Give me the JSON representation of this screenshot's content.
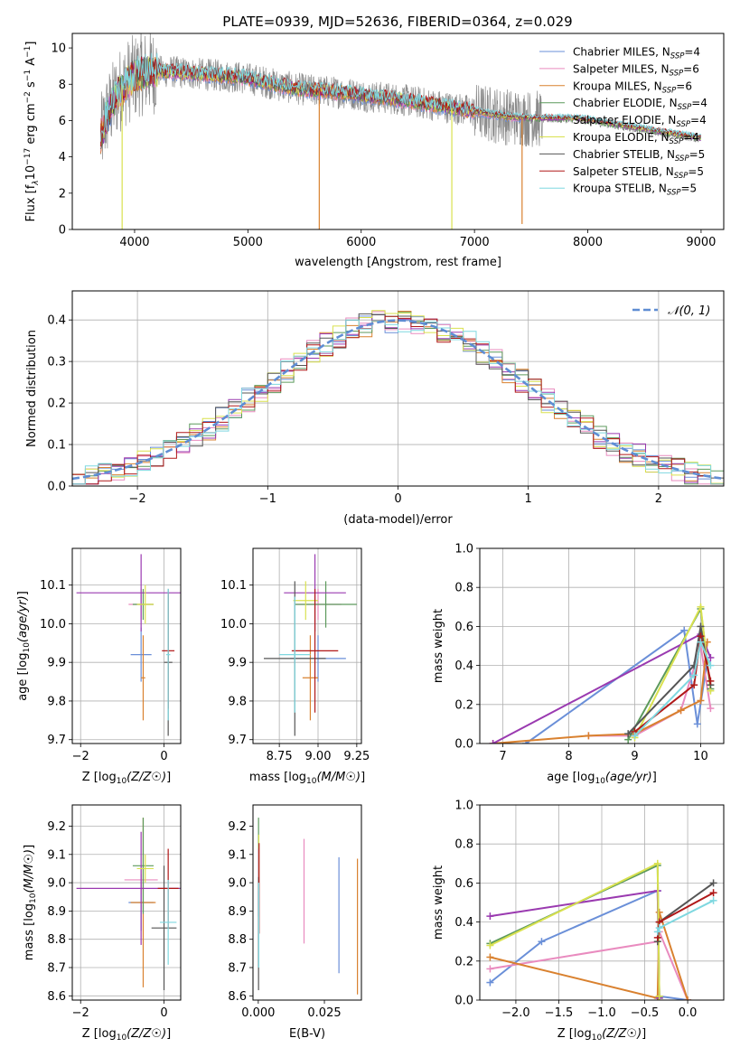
{
  "title": "PLATE=0939, MJD=52636, FIBERID=0364, z=0.029",
  "colors": {
    "Chabrier MILES": "#6a8fd8",
    "Salpeter MILES": "#e98bbf",
    "Kroupa MILES": "#d9812f",
    "Chabrier ELODIE": "#5c9a5c",
    "Salpeter ELODIE": "#9a3ab0",
    "Kroupa ELODIE": "#d9e14f",
    "Chabrier STELIB": "#555555",
    "Salpeter STELIB": "#b01818",
    "Kroupa STELIB": "#7fd8e0"
  },
  "chart_data": [
    {
      "id": "spectrum",
      "type": "line",
      "title": "PLATE=0939, MJD=52636, FIBERID=0364, z=0.029",
      "xlabel": "wavelength [Angstrom, rest frame]",
      "ylabel_tex": "Flux [f_λ10^-17 erg cm^-2 s^-1 A^-1]",
      "xlim": [
        3450,
        9200
      ],
      "ylim": [
        0,
        10.8
      ],
      "xticks": [
        4000,
        5000,
        6000,
        7000,
        8000,
        9000
      ],
      "yticks": [
        0,
        2,
        4,
        6,
        8,
        10
      ],
      "grid": false,
      "legend_position": "top-right",
      "legend": [
        {
          "label": "Chabrier MILES, N",
          "sub": "SSP",
          "suffix": "=4"
        },
        {
          "label": "Salpeter MILES, N",
          "sub": "SSP",
          "suffix": "=6"
        },
        {
          "label": "Kroupa MILES, N",
          "sub": "SSP",
          "suffix": "=6"
        },
        {
          "label": "Chabrier ELODIE, N",
          "sub": "SSP",
          "suffix": "=4"
        },
        {
          "label": "Salpeter ELODIE, N",
          "sub": "SSP",
          "suffix": "=4"
        },
        {
          "label": "Kroupa ELODIE, N",
          "sub": "SSP",
          "suffix": "=4"
        },
        {
          "label": "Chabrier STELIB, N",
          "sub": "SSP",
          "suffix": "=5"
        },
        {
          "label": "Salpeter STELIB, N",
          "sub": "SSP",
          "suffix": "=5"
        },
        {
          "label": "Kroupa STELIB, N",
          "sub": "SSP",
          "suffix": "=5"
        }
      ],
      "data_envelope": {
        "x": [
          3700,
          3750,
          3850,
          3950,
          4050,
          4150,
          4300,
          4500,
          4700,
          4900,
          5100,
          5300,
          5500,
          5700,
          5900,
          6100,
          6300,
          6500,
          6700,
          6900,
          7100,
          7300,
          7500,
          7700,
          7900,
          8100,
          8300,
          8500,
          8700,
          8900,
          9000
        ],
        "y": [
          5.0,
          6.2,
          7.5,
          8.2,
          8.6,
          8.7,
          8.7,
          8.6,
          8.5,
          8.4,
          8.2,
          7.9,
          7.7,
          7.6,
          7.5,
          7.3,
          7.2,
          7.0,
          6.8,
          6.6,
          6.4,
          6.2,
          6.1,
          6.1,
          6.1,
          5.9,
          5.7,
          5.5,
          5.3,
          5.1,
          5.0
        ]
      },
      "model_dropouts": [
        {
          "x": 3890,
          "y_to": 0,
          "series": "Kroupa ELODIE"
        },
        {
          "x": 5630,
          "y_to": 0,
          "series": "Kroupa MILES"
        },
        {
          "x": 6800,
          "y_to": 0,
          "series": "Kroupa ELODIE"
        },
        {
          "x": 7420,
          "y_to": 0.3,
          "series": "Kroupa MILES"
        }
      ]
    },
    {
      "id": "residuals",
      "type": "histogram",
      "xlabel": "(data-model)/error",
      "ylabel": "Normed distribution",
      "xlim": [
        -2.5,
        2.5
      ],
      "ylim": [
        0,
        0.47
      ],
      "xticks": [
        -2,
        -1,
        0,
        1,
        2
      ],
      "yticks": [
        0.0,
        0.1,
        0.2,
        0.3,
        0.4
      ],
      "grid": true,
      "bin_width": 0.1,
      "legend": [
        {
          "label": "𝒩(0, 1)",
          "series": "gaussian"
        }
      ],
      "legend_position": "top-right",
      "gaussian": {
        "mu": 0,
        "sigma": 1,
        "color": "#5f8dd3",
        "style": "dashed"
      }
    },
    {
      "id": "z-age",
      "type": "errorbar",
      "xlabel": "Z [log10(Z/Z☉)]",
      "ylabel": "age  [log10(age/yr)]",
      "xlim": [
        -2.2,
        0.4
      ],
      "ylim": [
        9.69,
        10.195
      ],
      "xticks": [
        -2,
        0
      ],
      "yticks": [
        9.7,
        9.8,
        9.9,
        10.0,
        10.1
      ],
      "grid": true,
      "points": [
        {
          "series": "Chabrier MILES",
          "x": -0.55,
          "y": 9.92,
          "xerr": 0.25,
          "yerr": 0.07
        },
        {
          "series": "Salpeter MILES",
          "x": -0.55,
          "y": 10.05,
          "xerr": 0.3,
          "yerr": 0.04
        },
        {
          "series": "Kroupa MILES",
          "x": -0.5,
          "y": 9.86,
          "xerr": 0.05,
          "yerr": 0.11
        },
        {
          "series": "Chabrier ELODIE",
          "x": -0.5,
          "y": 10.05,
          "xerr": 0.25,
          "yerr": 0.04
        },
        {
          "series": "Salpeter ELODIE",
          "x": -0.55,
          "y": 10.08,
          "xerr": 1.55,
          "yerr": 0.1
        },
        {
          "series": "Kroupa ELODIE",
          "x": -0.45,
          "y": 10.05,
          "xerr": 0.2,
          "yerr": 0.05
        },
        {
          "series": "Chabrier STELIB",
          "x": 0.1,
          "y": 9.9,
          "xerr": 0.1,
          "yerr": 0.19
        },
        {
          "series": "Salpeter STELIB",
          "x": 0.1,
          "y": 9.93,
          "xerr": 0.15,
          "yerr": 0.15
        },
        {
          "series": "Kroupa STELIB",
          "x": 0.1,
          "y": 9.92,
          "xerr": 0.05,
          "yerr": 0.17
        }
      ]
    },
    {
      "id": "mass-age",
      "type": "errorbar",
      "xlabel": "mass [log10(M/M☉)]",
      "ylabel": "",
      "xlim": [
        8.58,
        9.28
      ],
      "ylim": [
        9.69,
        10.195
      ],
      "xticks": [
        8.75,
        9.0,
        9.25
      ],
      "yticks": [
        9.7,
        9.8,
        9.9,
        10.0,
        10.1
      ],
      "grid": true,
      "points": [
        {
          "series": "Chabrier MILES",
          "x": 9.0,
          "y": 9.91,
          "xerr": 0.18,
          "yerr": 0.06
        },
        {
          "series": "Salpeter MILES",
          "x": 9.0,
          "y": 10.05,
          "xerr": 0.15,
          "yerr": 0.04
        },
        {
          "series": "Kroupa MILES",
          "x": 8.95,
          "y": 9.86,
          "xerr": 0.05,
          "yerr": 0.11
        },
        {
          "series": "Chabrier ELODIE",
          "x": 9.05,
          "y": 10.05,
          "xerr": 0.2,
          "yerr": 0.06
        },
        {
          "series": "Salpeter ELODIE",
          "x": 8.98,
          "y": 10.08,
          "xerr": 0.2,
          "yerr": 0.1
        },
        {
          "series": "Kroupa ELODIE",
          "x": 8.92,
          "y": 10.06,
          "xerr": 0.08,
          "yerr": 0.05
        },
        {
          "series": "Chabrier STELIB",
          "x": 8.85,
          "y": 9.91,
          "xerr": 0.2,
          "yerr": 0.2
        },
        {
          "series": "Salpeter STELIB",
          "x": 8.98,
          "y": 9.93,
          "xerr": 0.15,
          "yerr": 0.16
        },
        {
          "series": "Kroupa STELIB",
          "x": 8.85,
          "y": 9.92,
          "xerr": 0.1,
          "yerr": 0.15
        }
      ]
    },
    {
      "id": "age-weight",
      "type": "line",
      "xlabel": "age  [log10(age/yr)]",
      "ylabel": "mass weight",
      "xlim": [
        6.65,
        10.35
      ],
      "ylim": [
        0,
        1
      ],
      "xticks": [
        7,
        8,
        9,
        10
      ],
      "yticks": [
        0.0,
        0.2,
        0.4,
        0.6,
        0.8,
        1.0
      ],
      "grid": true,
      "series": [
        {
          "name": "Chabrier MILES",
          "x": [
            7.35,
            9.75,
            9.95,
            10.1
          ],
          "y": [
            0.0,
            0.58,
            0.1,
            0.42
          ]
        },
        {
          "name": "Salpeter MILES",
          "x": [
            8.3,
            9.0,
            9.7,
            10.0,
            10.15
          ],
          "y": [
            0.04,
            0.04,
            0.17,
            0.5,
            0.18
          ]
        },
        {
          "name": "Kroupa MILES",
          "x": [
            6.85,
            8.3,
            9.0,
            9.7,
            10.0,
            10.1
          ],
          "y": [
            0.0,
            0.04,
            0.05,
            0.17,
            0.22,
            0.52
          ]
        },
        {
          "name": "Chabrier ELODIE",
          "x": [
            8.9,
            10.0,
            10.15
          ],
          "y": [
            0.02,
            0.69,
            0.28
          ]
        },
        {
          "name": "Salpeter ELODIE",
          "x": [
            6.85,
            10.0,
            10.15
          ],
          "y": [
            0.0,
            0.56,
            0.44
          ]
        },
        {
          "name": "Kroupa ELODIE",
          "x": [
            9.0,
            10.0,
            10.15
          ],
          "y": [
            0.03,
            0.7,
            0.27
          ]
        },
        {
          "name": "Chabrier STELIB",
          "x": [
            8.9,
            9.9,
            10.0,
            10.15
          ],
          "y": [
            0.05,
            0.4,
            0.6,
            0.3
          ]
        },
        {
          "name": "Salpeter STELIB",
          "x": [
            9.0,
            9.9,
            10.0,
            10.15
          ],
          "y": [
            0.06,
            0.3,
            0.55,
            0.32
          ]
        },
        {
          "name": "Kroupa STELIB",
          "x": [
            9.0,
            9.9,
            10.0,
            10.15
          ],
          "y": [
            0.04,
            0.35,
            0.52,
            0.4
          ]
        }
      ]
    },
    {
      "id": "z-mass",
      "type": "errorbar",
      "xlabel": "Z [log10(Z/Z☉)]",
      "ylabel": "mass [log10(M/M☉)]",
      "xlim": [
        -2.2,
        0.4
      ],
      "ylim": [
        8.585,
        9.275
      ],
      "xticks": [
        -2,
        0
      ],
      "yticks": [
        8.6,
        8.7,
        8.8,
        8.9,
        9.0,
        9.1,
        9.2
      ],
      "grid": true,
      "points": [
        {
          "series": "Chabrier MILES",
          "x": -0.55,
          "y": 8.93,
          "xerr": 0.3,
          "yerr": 0.1
        },
        {
          "series": "Salpeter MILES",
          "x": -0.55,
          "y": 9.01,
          "xerr": 0.4,
          "yerr": 0.05
        },
        {
          "series": "Kroupa MILES",
          "x": -0.5,
          "y": 8.93,
          "xerr": 0.3,
          "yerr": 0.3
        },
        {
          "series": "Chabrier ELODIE",
          "x": -0.5,
          "y": 9.06,
          "xerr": 0.25,
          "yerr": 0.17
        },
        {
          "series": "Salpeter ELODIE",
          "x": -0.55,
          "y": 8.98,
          "xerr": 1.55,
          "yerr": 0.2
        },
        {
          "series": "Kroupa ELODIE",
          "x": -0.45,
          "y": 9.05,
          "xerr": 0.2,
          "yerr": 0.05
        },
        {
          "series": "Chabrier STELIB",
          "x": 0.0,
          "y": 8.84,
          "xerr": 0.3,
          "yerr": 0.22
        },
        {
          "series": "Salpeter STELIB",
          "x": 0.1,
          "y": 8.98,
          "xerr": 0.25,
          "yerr": 0.14
        },
        {
          "series": "Kroupa STELIB",
          "x": 0.1,
          "y": 8.86,
          "xerr": 0.2,
          "yerr": 0.15
        }
      ]
    },
    {
      "id": "ebv-mass",
      "type": "errorbar",
      "xlabel": "E(B-V)",
      "ylabel": "",
      "xlim": [
        -0.002,
        0.039
      ],
      "ylim": [
        8.585,
        9.275
      ],
      "xticks": [
        0.0,
        0.025
      ],
      "xticklabels": [
        "0.000",
        "0.025"
      ],
      "yticks": [
        8.6,
        8.7,
        8.8,
        8.9,
        9.0,
        9.1,
        9.2
      ],
      "grid": false,
      "points": [
        {
          "series": "Chabrier MILES",
          "x": 0.0305,
          "y": 8.885,
          "yerr": 0.205
        },
        {
          "series": "Salpeter MILES",
          "x": 0.0173,
          "y": 8.97,
          "yerr": 0.185
        },
        {
          "series": "Kroupa MILES",
          "x": 0.0375,
          "y": 8.845,
          "yerr": 0.24
        },
        {
          "series": "Chabrier ELODIE",
          "x": 0.0001,
          "y": 9.07,
          "yerr": 0.16
        },
        {
          "series": "Salpeter ELODIE",
          "x": 0.0001,
          "y": 9.0,
          "yerr": 0.12
        },
        {
          "series": "Kroupa ELODIE",
          "x": 0.0002,
          "y": 9.07,
          "yerr": 0.1
        },
        {
          "series": "Chabrier STELIB",
          "x": 0.0001,
          "y": 8.82,
          "yerr": 0.2
        },
        {
          "series": "Salpeter STELIB",
          "x": 0.0003,
          "y": 8.98,
          "yerr": 0.16
        },
        {
          "series": "Kroupa STELIB",
          "x": 0.0002,
          "y": 8.85,
          "yerr": 0.15
        }
      ]
    },
    {
      "id": "z-weight",
      "type": "line",
      "xlabel": "Z [log10(Z/Z☉)]",
      "ylabel": "mass weight",
      "xlim": [
        -2.42,
        0.42
      ],
      "ylim": [
        0,
        1
      ],
      "xticks": [
        -2.0,
        -1.5,
        -1.0,
        -0.5,
        0.0
      ],
      "yticks": [
        0.0,
        0.2,
        0.4,
        0.6,
        0.8,
        1.0
      ],
      "grid": true,
      "series": [
        {
          "name": "Chabrier MILES",
          "x": [
            -2.3,
            -1.7,
            -0.35,
            -0.33,
            0.0
          ],
          "y": [
            0.09,
            0.3,
            0.56,
            0.02,
            0.0
          ]
        },
        {
          "name": "Salpeter MILES",
          "x": [
            -2.3,
            -0.35,
            -0.33,
            0.0
          ],
          "y": [
            0.16,
            0.3,
            0.35,
            0.0
          ]
        },
        {
          "name": "Kroupa MILES",
          "x": [
            -2.3,
            -0.35,
            -0.33,
            0.0
          ],
          "y": [
            0.22,
            0.01,
            0.45,
            0.0
          ]
        },
        {
          "name": "Chabrier ELODIE",
          "x": [
            -2.3,
            -0.35,
            -0.33
          ],
          "y": [
            0.29,
            0.69,
            0.01
          ]
        },
        {
          "name": "Salpeter ELODIE",
          "x": [
            -2.3,
            -0.35,
            -0.33
          ],
          "y": [
            0.43,
            0.56,
            0.01
          ]
        },
        {
          "name": "Kroupa ELODIE",
          "x": [
            -2.3,
            -0.35,
            -0.33
          ],
          "y": [
            0.28,
            0.7,
            0.02
          ]
        },
        {
          "name": "Chabrier STELIB",
          "x": [
            -0.35,
            -0.33,
            0.3
          ],
          "y": [
            0.3,
            0.4,
            0.6
          ]
        },
        {
          "name": "Salpeter STELIB",
          "x": [
            -0.35,
            -0.33,
            0.3
          ],
          "y": [
            0.32,
            0.4,
            0.55
          ]
        },
        {
          "name": "Kroupa STELIB",
          "x": [
            -0.35,
            -0.33,
            0.3
          ],
          "y": [
            0.35,
            0.37,
            0.51
          ]
        }
      ]
    }
  ]
}
